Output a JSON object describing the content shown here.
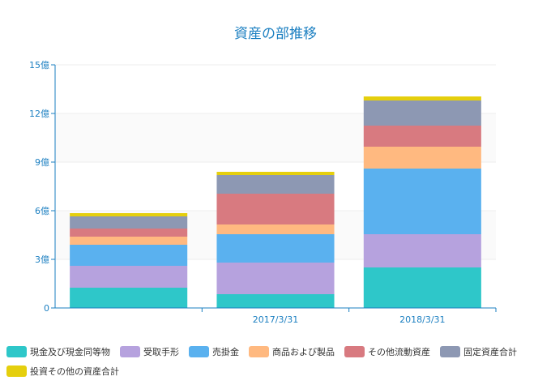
{
  "chart_data": {
    "type": "bar",
    "stacked": true,
    "title": "資産の部推移",
    "categories": [
      "",
      "2017/3/31",
      "2018/3/31"
    ],
    "y_ticks": [
      "0",
      "3億",
      "6億",
      "9億",
      "12億",
      "15億"
    ],
    "ylim": [
      0,
      15
    ],
    "y_unit": "億",
    "grid": true,
    "legend_position": "bottom",
    "series": [
      {
        "name": "現金及び現金同等物",
        "color": "#2ec7c9",
        "values": [
          1.25,
          0.85,
          2.5
        ]
      },
      {
        "name": "受取手形",
        "color": "#b6a2de",
        "values": [
          1.35,
          1.95,
          2.05
        ]
      },
      {
        "name": "売掛金",
        "color": "#5ab1ef",
        "values": [
          1.3,
          1.75,
          4.05
        ]
      },
      {
        "name": "商品および製品",
        "color": "#ffb980",
        "values": [
          0.5,
          0.6,
          1.35
        ]
      },
      {
        "name": "その他流動資産",
        "color": "#d87a80",
        "values": [
          0.5,
          1.9,
          1.3
        ]
      },
      {
        "name": "固定資産合計",
        "color": "#8d98b3",
        "values": [
          0.75,
          1.15,
          1.55
        ]
      },
      {
        "name": "投資その他の資産合計",
        "color": "#e5cf0d",
        "values": [
          0.2,
          0.2,
          0.25
        ]
      }
    ]
  }
}
